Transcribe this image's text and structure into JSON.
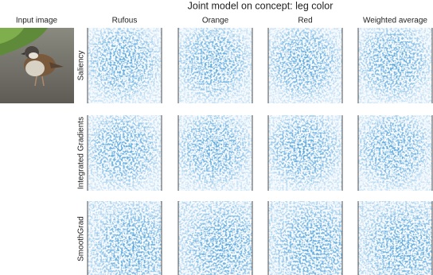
{
  "title": "Joint model on concept: leg color",
  "input_label": "Input image",
  "columns": [
    "Rufous",
    "Orange",
    "Red",
    "Weighted average"
  ],
  "rows": [
    "Saliency",
    "Integrated Gradients",
    "SmoothGrad"
  ]
}
